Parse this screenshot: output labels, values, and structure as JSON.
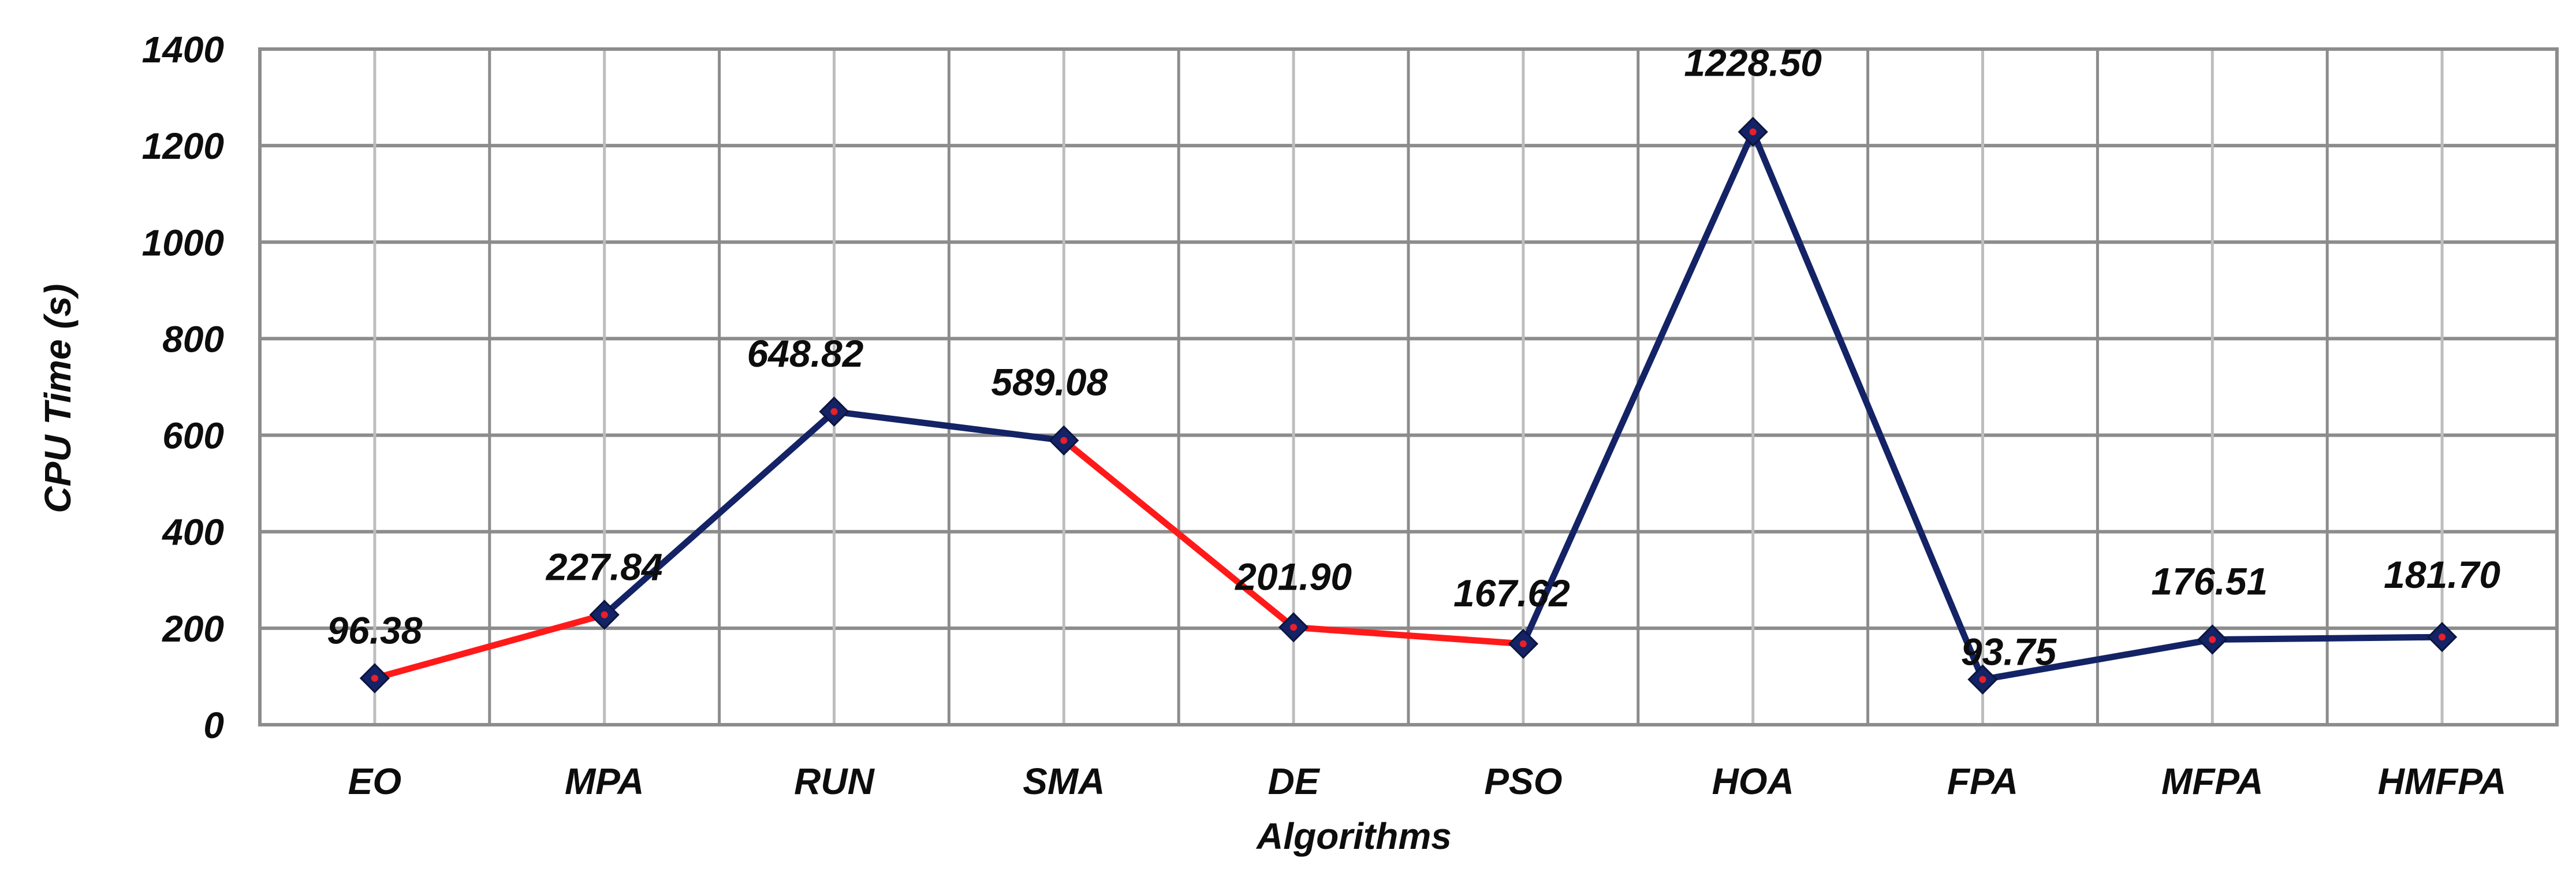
{
  "chart_data": {
    "type": "line",
    "categories": [
      "EO",
      "MPA",
      "RUN",
      "SMA",
      "DE",
      "PSO",
      "HOA",
      "FPA",
      "MFPA",
      "HMFPA"
    ],
    "series": [
      {
        "values": [
          96.38,
          227.84,
          648.82,
          589.08,
          201.9,
          167.62,
          1228.5,
          93.75,
          176.51,
          181.7
        ],
        "value_labels": [
          "96.38",
          "227.84",
          "648.82",
          "589.08",
          "201.90",
          "167.62",
          "1228.50",
          "93.75",
          "176.51",
          "181.70"
        ]
      }
    ],
    "segment_colors": [
      "#ff1a1a",
      "#142366",
      "#142366",
      "#ff1a1a",
      "#ff1a1a",
      "#142366",
      "#142366",
      "#142366",
      "#142366"
    ],
    "marker_fill": "#142366",
    "marker_center": "#e8202a",
    "xlabel": "Algorithms",
    "ylabel": "CPU Time (s)",
    "ylim": [
      0,
      1400
    ],
    "yticks": [
      0,
      200,
      400,
      600,
      800,
      1000,
      1200,
      1400
    ],
    "grid": true,
    "legend": "none"
  }
}
